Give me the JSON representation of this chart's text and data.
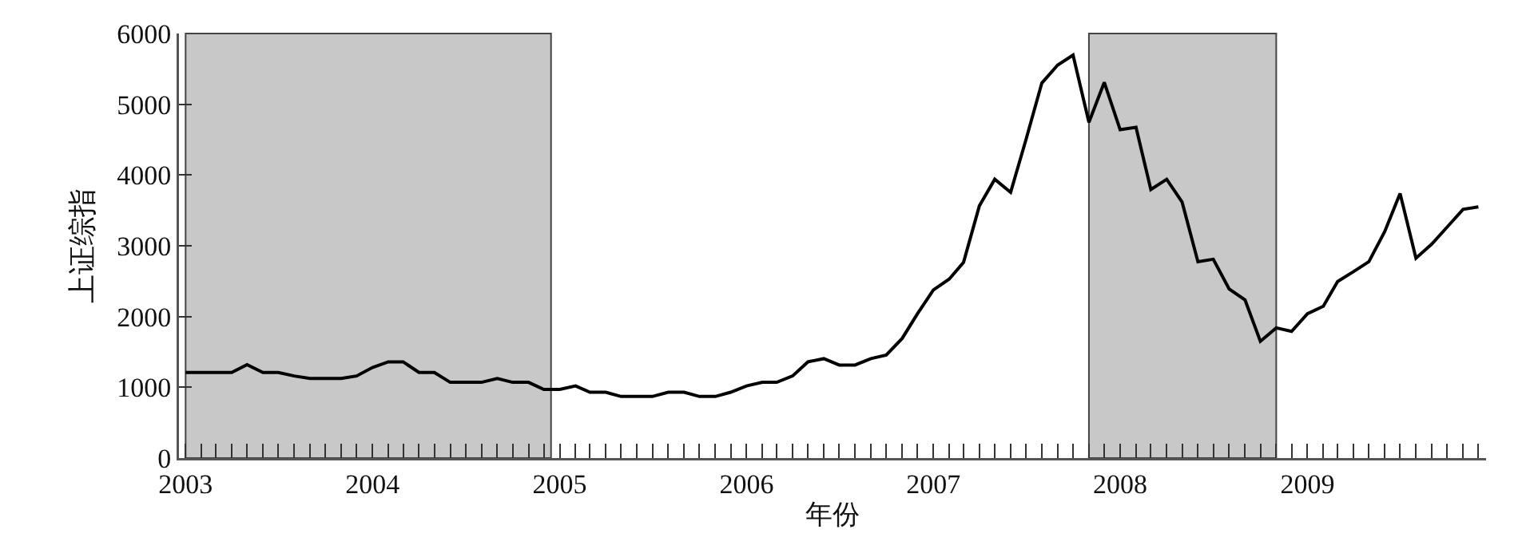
{
  "chart_data": {
    "type": "line",
    "xlabel": "年份",
    "ylabel": "上证综指",
    "x": [
      "2003-01",
      "2003-02",
      "2003-03",
      "2003-04",
      "2003-05",
      "2003-06",
      "2003-07",
      "2003-08",
      "2003-09",
      "2003-10",
      "2003-11",
      "2003-12",
      "2004-01",
      "2004-02",
      "2004-03",
      "2004-04",
      "2004-05",
      "2004-06",
      "2004-07",
      "2004-08",
      "2004-09",
      "2004-10",
      "2004-11",
      "2004-12",
      "2005-01",
      "2005-02",
      "2005-03",
      "2005-04",
      "2005-05",
      "2005-06",
      "2005-07",
      "2005-08",
      "2005-09",
      "2005-10",
      "2005-11",
      "2005-12",
      "2006-01",
      "2006-02",
      "2006-03",
      "2006-04",
      "2006-05",
      "2006-06",
      "2006-07",
      "2006-08",
      "2006-09",
      "2006-10",
      "2006-11",
      "2006-12",
      "2007-01",
      "2007-02",
      "2007-03",
      "2007-04",
      "2007-05",
      "2007-06",
      "2007-07",
      "2007-08",
      "2007-09",
      "2007-10",
      "2007-11",
      "2007-12",
      "2008-01",
      "2008-02",
      "2008-03",
      "2008-04",
      "2008-05",
      "2008-06",
      "2008-07",
      "2008-08",
      "2008-09",
      "2008-10",
      "2008-11",
      "2008-12",
      "2009-01",
      "2009-02",
      "2009-03",
      "2009-04",
      "2009-05",
      "2009-06",
      "2009-07",
      "2009-08",
      "2009-09",
      "2009-10",
      "2009-11",
      "2009-12"
    ],
    "series": [
      {
        "color": "#000000",
        "values": [
          1210,
          1210,
          1210,
          1210,
          1320,
          1210,
          1210,
          1160,
          1125,
          1125,
          1125,
          1160,
          1280,
          1360,
          1360,
          1210,
          1210,
          1070,
          1070,
          1070,
          1125,
          1070,
          1070,
          970,
          970,
          1020,
          930,
          930,
          870,
          870,
          870,
          930,
          930,
          870,
          870,
          930,
          1020,
          1070,
          1070,
          1160,
          1360,
          1405,
          1315,
          1315,
          1405,
          1455,
          1690,
          2040,
          2375,
          2530,
          2765,
          3565,
          3940,
          3755,
          4500,
          5300,
          5555,
          5695,
          4745,
          5310,
          4640,
          4675,
          3795,
          3940,
          3620,
          2775,
          2810,
          2390,
          2235,
          1650,
          1840,
          1790,
          2040,
          2145,
          2495,
          2635,
          2775,
          3200,
          3740,
          2825,
          3025,
          3265,
          3515,
          3550
        ]
      }
    ],
    "xlim": [
      "2002-12-19",
      "2009-12-16"
    ],
    "xticks": [
      {
        "value": "2003-01",
        "label": "2003"
      },
      {
        "value": "2003-02",
        "label": null
      },
      {
        "value": "2003-03",
        "label": null
      },
      {
        "value": "2003-04",
        "label": null
      },
      {
        "value": "2003-05",
        "label": null
      },
      {
        "value": "2003-06",
        "label": null
      },
      {
        "value": "2003-07",
        "label": null
      },
      {
        "value": "2003-08",
        "label": null
      },
      {
        "value": "2003-09",
        "label": null
      },
      {
        "value": "2003-10",
        "label": null
      },
      {
        "value": "2003-11",
        "label": null
      },
      {
        "value": "2003-12",
        "label": null
      },
      {
        "value": "2004-01",
        "label": "2004"
      },
      {
        "value": "2004-02",
        "label": null
      },
      {
        "value": "2004-03",
        "label": null
      },
      {
        "value": "2004-04",
        "label": null
      },
      {
        "value": "2004-05",
        "label": null
      },
      {
        "value": "2004-06",
        "label": null
      },
      {
        "value": "2004-07",
        "label": null
      },
      {
        "value": "2004-08",
        "label": null
      },
      {
        "value": "2004-09",
        "label": null
      },
      {
        "value": "2004-10",
        "label": null
      },
      {
        "value": "2004-11",
        "label": null
      },
      {
        "value": "2004-12",
        "label": null
      },
      {
        "value": "2005-01",
        "label": "2005"
      },
      {
        "value": "2005-02",
        "label": null
      },
      {
        "value": "2005-03",
        "label": null
      },
      {
        "value": "2005-04",
        "label": null
      },
      {
        "value": "2005-05",
        "label": null
      },
      {
        "value": "2005-06",
        "label": null
      },
      {
        "value": "2005-07",
        "label": null
      },
      {
        "value": "2005-08",
        "label": null
      },
      {
        "value": "2005-09",
        "label": null
      },
      {
        "value": "2005-10",
        "label": null
      },
      {
        "value": "2005-11",
        "label": null
      },
      {
        "value": "2005-12",
        "label": null
      },
      {
        "value": "2006-01",
        "label": "2006"
      },
      {
        "value": "2006-02",
        "label": null
      },
      {
        "value": "2006-03",
        "label": null
      },
      {
        "value": "2006-04",
        "label": null
      },
      {
        "value": "2006-05",
        "label": null
      },
      {
        "value": "2006-06",
        "label": null
      },
      {
        "value": "2006-07",
        "label": null
      },
      {
        "value": "2006-08",
        "label": null
      },
      {
        "value": "2006-09",
        "label": null
      },
      {
        "value": "2006-10",
        "label": null
      },
      {
        "value": "2006-11",
        "label": null
      },
      {
        "value": "2006-12",
        "label": null
      },
      {
        "value": "2007-01",
        "label": "2007"
      },
      {
        "value": "2007-02",
        "label": null
      },
      {
        "value": "2007-03",
        "label": null
      },
      {
        "value": "2007-04",
        "label": null
      },
      {
        "value": "2007-05",
        "label": null
      },
      {
        "value": "2007-06",
        "label": null
      },
      {
        "value": "2007-07",
        "label": null
      },
      {
        "value": "2007-08",
        "label": null
      },
      {
        "value": "2007-09",
        "label": null
      },
      {
        "value": "2007-10",
        "label": null
      },
      {
        "value": "2007-11",
        "label": null
      },
      {
        "value": "2007-12",
        "label": null
      },
      {
        "value": "2008-01",
        "label": "2008"
      },
      {
        "value": "2008-02",
        "label": null
      },
      {
        "value": "2008-03",
        "label": null
      },
      {
        "value": "2008-04",
        "label": null
      },
      {
        "value": "2008-05",
        "label": null
      },
      {
        "value": "2008-06",
        "label": null
      },
      {
        "value": "2008-07",
        "label": null
      },
      {
        "value": "2008-08",
        "label": null
      },
      {
        "value": "2008-09",
        "label": null
      },
      {
        "value": "2008-10",
        "label": null
      },
      {
        "value": "2008-11",
        "label": null
      },
      {
        "value": "2008-12",
        "label": null
      },
      {
        "value": "2009-01",
        "label": "2009"
      },
      {
        "value": "2009-02",
        "label": null
      },
      {
        "value": "2009-03",
        "label": null
      },
      {
        "value": "2009-04",
        "label": null
      },
      {
        "value": "2009-05",
        "label": null
      },
      {
        "value": "2009-06",
        "label": null
      },
      {
        "value": "2009-07",
        "label": null
      },
      {
        "value": "2009-08",
        "label": null
      },
      {
        "value": "2009-09",
        "label": null
      },
      {
        "value": "2009-10",
        "label": null
      },
      {
        "value": "2009-11",
        "label": null
      },
      {
        "value": "2009-12",
        "label": null
      }
    ],
    "ylim": [
      0,
      6000
    ],
    "yticks": [
      0,
      1000,
      2000,
      3000,
      4000,
      5000,
      6000
    ],
    "bands": [
      {
        "axis": "x",
        "from": "2003-01",
        "to": "2004-12-15",
        "color": "#c8c8c8"
      },
      {
        "axis": "x",
        "from": "2007-11",
        "to": "2008-11",
        "color": "#c8c8c8"
      }
    ],
    "grid": false,
    "marker": "none",
    "line_style": "solid"
  }
}
